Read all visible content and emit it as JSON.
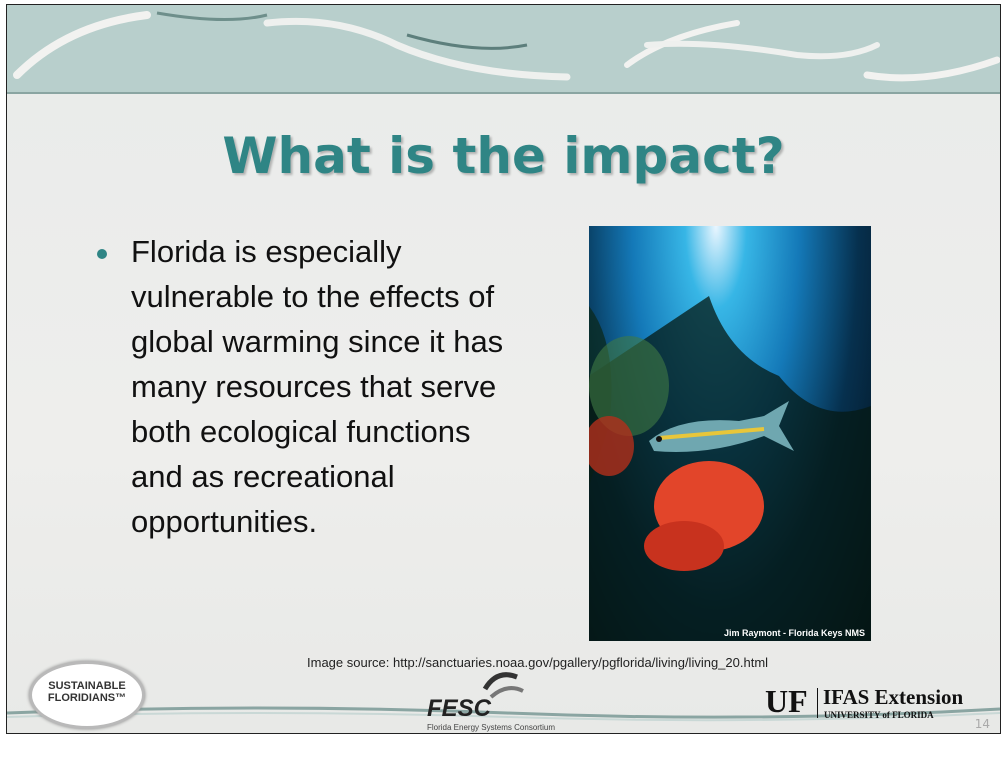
{
  "slide": {
    "title": "What is the impact?",
    "bullets": [
      "Florida is especially vulnerable to the effects of global warming since it has many resources that serve both ecological functions and as recreational opportunities."
    ],
    "image_credit": "Jim Raymont - Florida Keys NMS",
    "image_source": "Image source: http://sanctuaries.noaa.gov/pgallery/pgflorida/living/living_20.html",
    "logos": {
      "sustainable": [
        "SUSTAINABLE",
        "FLORIDIANS™"
      ],
      "fesc": {
        "name": "FESC",
        "full": "Florida Energy Systems Consortium"
      },
      "uf": {
        "mark": "UF",
        "name": "IFAS Extension",
        "sub": "UNIVERSITY of FLORIDA"
      }
    },
    "slide_number": "14"
  }
}
